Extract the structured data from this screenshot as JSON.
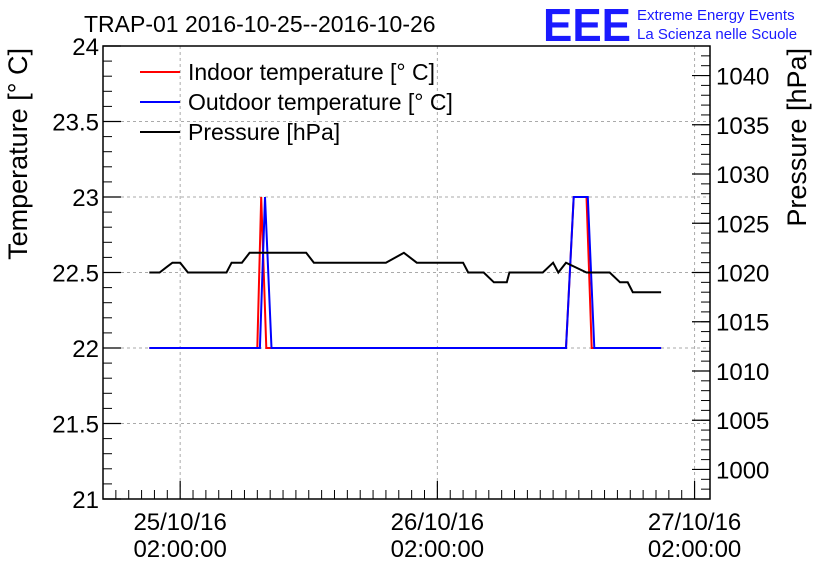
{
  "brand": {
    "logo": "EEE",
    "line1": "Extreme Energy Events",
    "line2": "La Scienza nelle Scuole",
    "color": "#1a1aff"
  },
  "chart_data": {
    "type": "line",
    "title": "TRAP-01 2016-10-25--2016-10-26",
    "ylabel": "Temperature [° C]",
    "y2label": "Pressure [hPa]",
    "ylim": [
      21,
      24
    ],
    "y2lim": [
      997,
      1043
    ],
    "xlim": [
      -0.3,
      2.06
    ],
    "x_unit": "days since 25/10/16 02:00:00",
    "yticks": [
      "21",
      "21.5",
      "22",
      "22.5",
      "23",
      "23.5",
      "24"
    ],
    "y2ticks": [
      "1000",
      "1005",
      "1010",
      "1015",
      "1020",
      "1025",
      "1030",
      "1035",
      "1040"
    ],
    "xticks": [
      {
        "x": 0,
        "date": "25/10/16",
        "time": "02:00:00"
      },
      {
        "x": 1,
        "date": "26/10/16",
        "time": "02:00:00"
      },
      {
        "x": 2,
        "date": "27/10/16",
        "time": "02:00:00"
      }
    ],
    "grid": true,
    "legend_position": "top-left",
    "series": [
      {
        "name": "Indoor temperature [° C]",
        "axis": "left",
        "color": "#ff0000",
        "x": [
          -0.12,
          0.3,
          0.315,
          0.335,
          0.37,
          0.48,
          0.505,
          0.78,
          0.81,
          0.835,
          0.905,
          0.93,
          1.07,
          1.1,
          1.14,
          1.19,
          1.22,
          1.3,
          1.33,
          1.47,
          1.5,
          1.53,
          1.555,
          1.58,
          1.6,
          1.87
        ],
        "values": [
          22,
          22,
          23,
          22,
          22,
          22,
          22,
          22,
          22,
          22,
          22,
          22,
          22,
          22,
          22,
          22,
          22,
          22,
          22,
          22,
          22,
          23,
          23,
          23,
          22,
          22
        ]
      },
      {
        "name": "Outdoor temperature [° C]",
        "axis": "left",
        "color": "#0000ff",
        "x": [
          -0.12,
          0.31,
          0.33,
          0.355,
          0.38,
          0.48,
          0.505,
          0.78,
          0.81,
          0.835,
          0.905,
          0.93,
          1.07,
          1.1,
          1.14,
          1.19,
          1.22,
          1.3,
          1.33,
          1.47,
          1.5,
          1.53,
          1.555,
          1.585,
          1.61,
          1.87
        ],
        "values": [
          22,
          22,
          23,
          22,
          22,
          22,
          22,
          22,
          22,
          22,
          22,
          22,
          22,
          22,
          22,
          22,
          22,
          22,
          22,
          22,
          22,
          23,
          23,
          23,
          22,
          22
        ]
      },
      {
        "name": "Pressure [hPa]",
        "axis": "right",
        "color": "#000000",
        "x": [
          -0.12,
          -0.08,
          -0.05,
          -0.03,
          0.0,
          0.03,
          0.05,
          0.1,
          0.18,
          0.2,
          0.24,
          0.27,
          0.3,
          0.33,
          0.4,
          0.44,
          0.49,
          0.52,
          0.55,
          0.6,
          0.68,
          0.74,
          0.77,
          0.8,
          0.87,
          0.92,
          0.97,
          1.04,
          1.07,
          1.1,
          1.12,
          1.15,
          1.18,
          1.22,
          1.27,
          1.28,
          1.3,
          1.31,
          1.33,
          1.36,
          1.41,
          1.45,
          1.47,
          1.5,
          1.58,
          1.6,
          1.62,
          1.64,
          1.67,
          1.71,
          1.74,
          1.76,
          1.78,
          1.8,
          1.82,
          1.84,
          1.86,
          1.87
        ],
        "values": [
          1020,
          1020,
          1020.6,
          1021,
          1021,
          1020,
          1020,
          1020,
          1020,
          1021,
          1021,
          1022,
          1022,
          1022,
          1022,
          1022,
          1022,
          1021,
          1021,
          1021,
          1021,
          1021,
          1021,
          1021,
          1022,
          1021,
          1021,
          1021,
          1021,
          1021,
          1020,
          1020,
          1020,
          1019,
          1019,
          1020,
          1020,
          1020,
          1020,
          1020,
          1020,
          1021,
          1020,
          1021,
          1020,
          1020,
          1020,
          1020,
          1020,
          1019,
          1019,
          1018,
          1018,
          1018,
          1018,
          1018,
          1018,
          1018
        ]
      }
    ]
  }
}
